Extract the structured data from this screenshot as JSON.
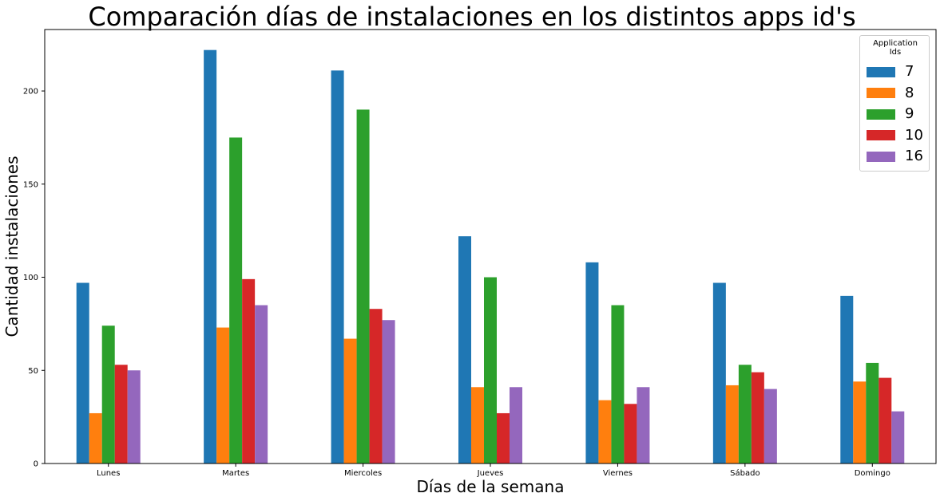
{
  "chart_data": {
    "type": "bar",
    "title": "Comparación días de instalaciones en los distintos apps id's",
    "xlabel": "Días de la semana",
    "ylabel": "Cantidad instalaciones",
    "categories": [
      "Lunes",
      "Martes",
      "Miercoles",
      "Jueves",
      "Viernes",
      "Sábado",
      "Domingo"
    ],
    "ylim": [
      0,
      233
    ],
    "yticks": [
      0,
      50,
      100,
      150,
      200
    ],
    "legend_title": "Application Ids",
    "legend_position": "top-right",
    "grid": false,
    "series": [
      {
        "name": "7",
        "color": "#1f77b4",
        "values": [
          97,
          222,
          211,
          122,
          108,
          97,
          90
        ]
      },
      {
        "name": "8",
        "color": "#ff7f0e",
        "values": [
          27,
          73,
          67,
          41,
          34,
          42,
          44
        ]
      },
      {
        "name": "9",
        "color": "#2ca02c",
        "values": [
          74,
          175,
          190,
          100,
          85,
          53,
          54
        ]
      },
      {
        "name": "10",
        "color": "#d62728",
        "values": [
          53,
          99,
          83,
          27,
          32,
          49,
          46
        ]
      },
      {
        "name": "16",
        "color": "#9467bd",
        "values": [
          50,
          85,
          77,
          41,
          41,
          40,
          28
        ]
      }
    ]
  }
}
